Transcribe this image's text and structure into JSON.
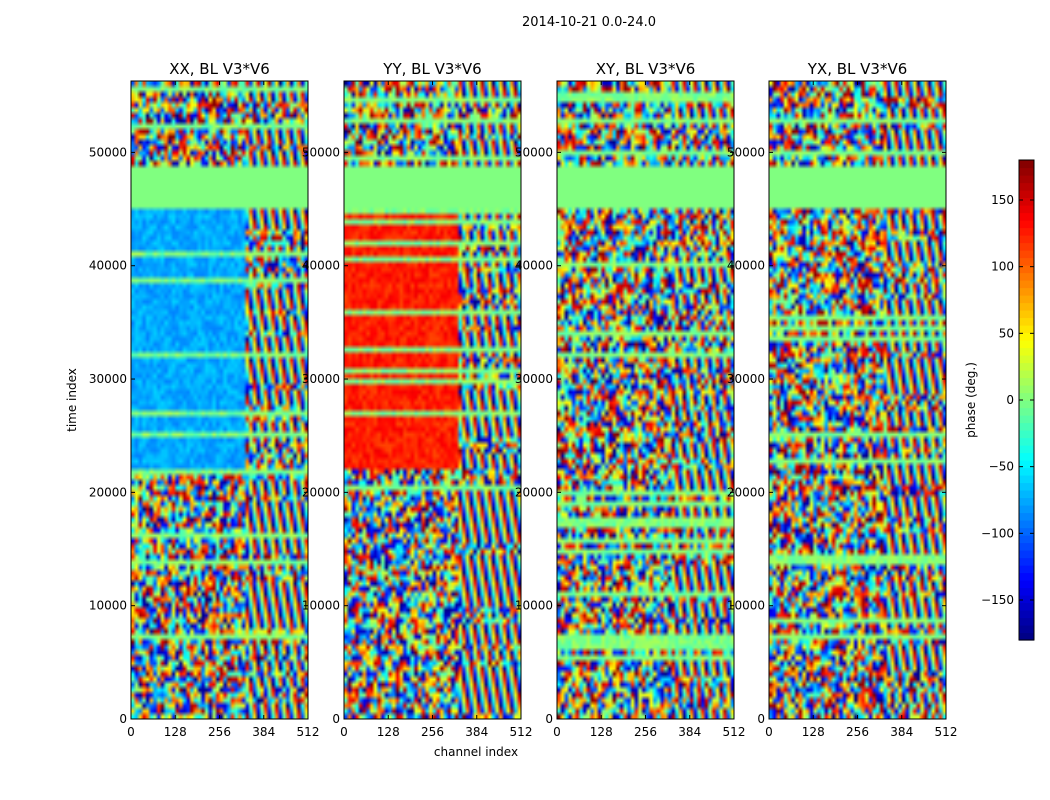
{
  "figure": {
    "suptitle": "2014-10-21 0.0-24.0",
    "xlabel": "channel index",
    "ylabel": "time index",
    "colorbar_label": "phase (deg.)"
  },
  "chart_data": {
    "type": "heatmap",
    "panels": [
      {
        "title": "XX, BL V3*V6",
        "dominant_phase_deg": -75
      },
      {
        "title": "YY, BL V3*V6",
        "dominant_phase_deg": 125
      },
      {
        "title": "XY, BL V3*V6",
        "dominant_phase_deg": 0
      },
      {
        "title": "YX, BL V3*V6",
        "dominant_phase_deg": 0
      }
    ],
    "x_ticks": [
      0,
      128,
      256,
      384,
      512
    ],
    "x_tick_labels": [
      "0",
      "128",
      "256",
      "384",
      "512"
    ],
    "xlim": [
      0,
      512
    ],
    "y_ticks": [
      0,
      10000,
      20000,
      30000,
      40000,
      50000
    ],
    "y_tick_labels": [
      "0",
      "10000",
      "20000",
      "30000",
      "40000",
      "50000"
    ],
    "ylim": [
      0,
      56300
    ],
    "flagged_time_range": [
      45000,
      49000
    ],
    "flagged_phase_deg": 0,
    "colorbar": {
      "range": [
        -180,
        180
      ],
      "ticks": [
        -150,
        -100,
        -50,
        0,
        50,
        100,
        150
      ],
      "tick_labels": [
        "−150",
        "−100",
        "−50",
        "0",
        "50",
        "100",
        "150"
      ],
      "colormap": "jet"
    }
  }
}
